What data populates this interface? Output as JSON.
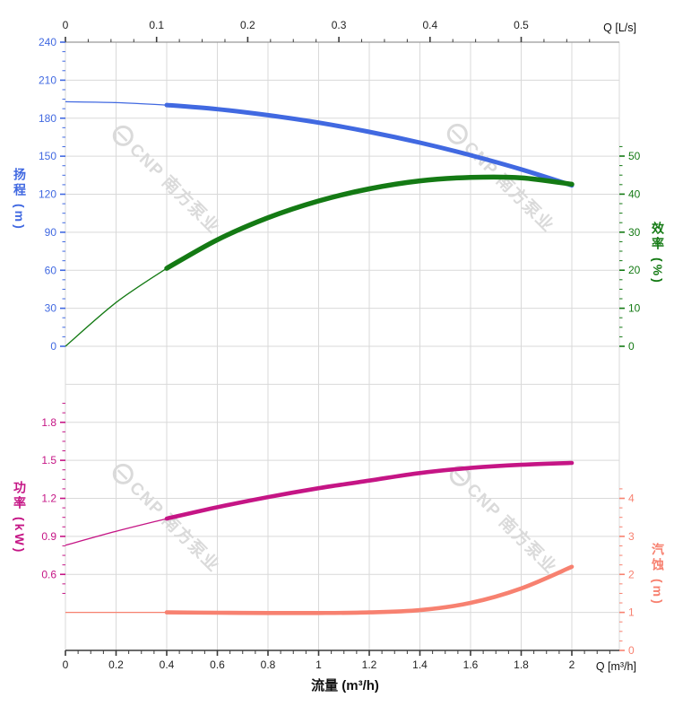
{
  "watermark": {
    "text": "CNP 南方泵业",
    "color": "#dadada"
  },
  "axes_labels": {
    "top_title": "Q [L/s]",
    "bottom_title": "Q [m³/h]",
    "x_label": "流量 (m³/h)",
    "head": {
      "label": "扬程",
      "unit": "(m)"
    },
    "eff": {
      "label": "效率",
      "unit": "(%)"
    },
    "power": {
      "label": "功率",
      "unit": "(kW)"
    },
    "npsh": {
      "label": "汽蚀",
      "unit": "(m)"
    }
  },
  "colors": {
    "head": "#4169e1",
    "eff": "#147a14",
    "power": "#c51585",
    "npsh": "#f78170",
    "grid": "#d9d9d9",
    "axis_dark": "#3a3a3a",
    "axis_gray": "#999999",
    "tick_text": "#222222"
  },
  "chart_data": {
    "type": "line",
    "x_axis_bottom": {
      "unit": "m³/h",
      "ticks": [
        "0",
        "0.2",
        "0.4",
        "0.6",
        "0.8",
        "1",
        "1.2",
        "1.4",
        "1.6",
        "1.8",
        "2"
      ],
      "minor_step": 0.05,
      "range": [
        0,
        2.19
      ]
    },
    "x_axis_top": {
      "unit": "L/s",
      "ticks": [
        "0",
        "0.1",
        "0.2",
        "0.3",
        "0.4",
        "0.5"
      ],
      "minor_step": 0.025,
      "range": [
        0,
        0.608
      ]
    },
    "y_axes": {
      "head": {
        "label": "扬程 (m)",
        "side": "left",
        "ticks": [
          "240",
          "210",
          "180",
          "150",
          "120",
          "90",
          "60",
          "30",
          "0"
        ],
        "minor_step": 7.5,
        "range": [
          0,
          240
        ]
      },
      "eff": {
        "label": "效率 (%)",
        "side": "right",
        "ticks": [
          "50",
          "40",
          "30",
          "20",
          "10",
          "0"
        ],
        "minor_step": 2.5,
        "range": [
          0,
          50
        ]
      },
      "power": {
        "label": "功率 (kW)",
        "side": "left",
        "ticks": [
          "1.8",
          "1.5",
          "1.2",
          "0.9",
          "0.6"
        ],
        "minor_step": 0.075,
        "range": [
          0,
          1.8
        ]
      },
      "npsh": {
        "label": "汽蚀 (m)",
        "side": "right",
        "ticks": [
          "4",
          "3",
          "2",
          "1",
          "0"
        ],
        "minor_step": 0.25,
        "range": [
          0,
          4
        ]
      }
    },
    "x_m3h": [
      0,
      0.2,
      0.4,
      0.6,
      0.8,
      1.0,
      1.2,
      1.4,
      1.6,
      1.8,
      2.0
    ],
    "thin_until": 0.4,
    "series": [
      {
        "name": "扬程",
        "axis": "head",
        "unit": "m",
        "values": [
          193,
          192.3,
          190.4,
          187.1,
          182.4,
          176.5,
          169.2,
          160.7,
          150.8,
          139.6,
          127
        ]
      },
      {
        "name": "效率",
        "axis": "eff",
        "unit": "%",
        "values": [
          0,
          11.5,
          20.5,
          28,
          33.8,
          38.2,
          41.4,
          43.5,
          44.4,
          44.3,
          42.6
        ]
      },
      {
        "name": "功率",
        "axis": "power",
        "unit": "kW",
        "values": [
          0.83,
          0.94,
          1.04,
          1.13,
          1.21,
          1.28,
          1.34,
          1.4,
          1.44,
          1.465,
          1.48
        ]
      },
      {
        "name": "汽蚀",
        "axis": "npsh",
        "unit": "m",
        "values": [
          1.0,
          1.0,
          1.0,
          0.99,
          0.985,
          0.985,
          1.0,
          1.06,
          1.25,
          1.63,
          2.2
        ]
      }
    ]
  }
}
